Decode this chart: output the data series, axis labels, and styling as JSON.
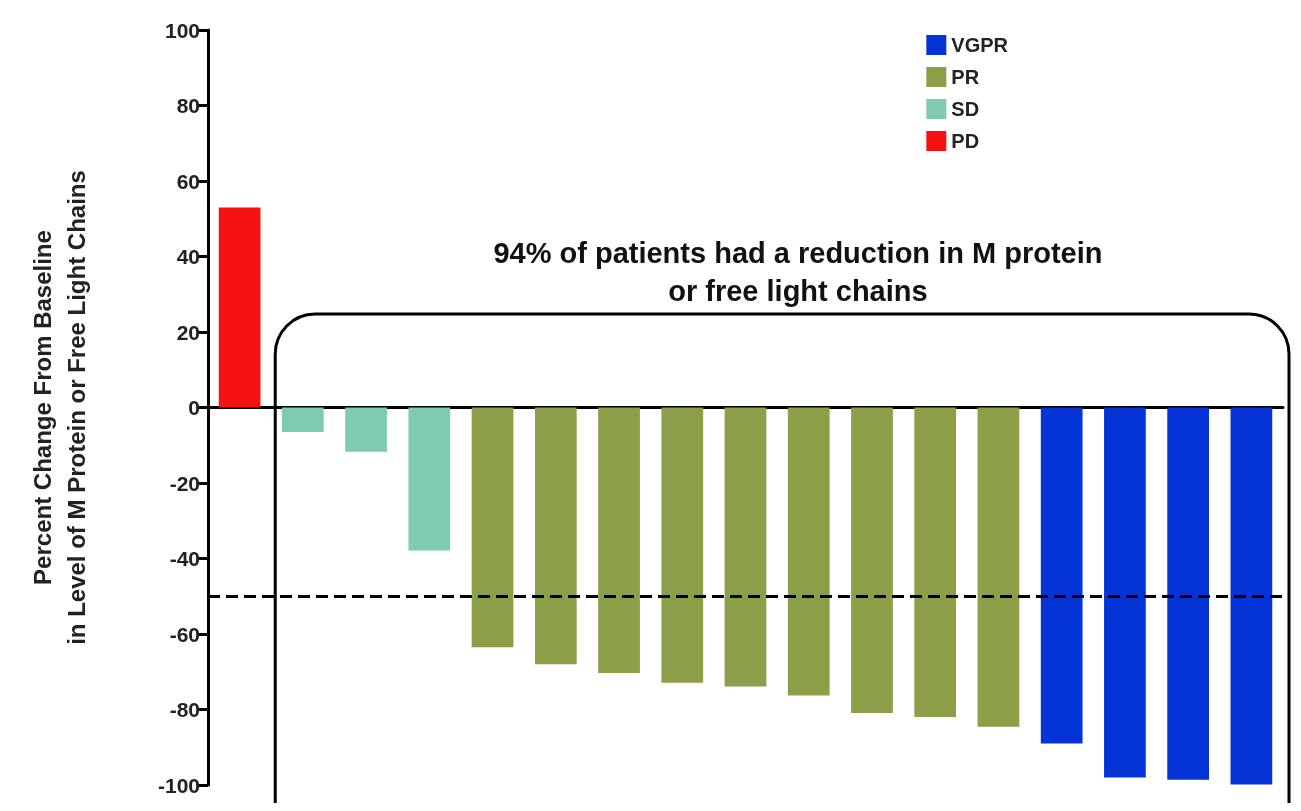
{
  "chart_data": {
    "type": "bar",
    "ylabel": "Percent Change From Baseline\nin Level of M Protein or Free Light Chains",
    "categories": [
      null,
      null,
      null,
      null,
      null,
      null,
      null,
      null,
      null,
      null,
      null,
      null,
      null,
      null,
      null,
      null,
      null
    ],
    "stacked": true,
    "series": [
      {
        "name": "VGPR",
        "color": "#0433d6",
        "values": [
          null,
          null,
          null,
          null,
          null,
          null,
          null,
          null,
          null,
          null,
          null,
          null,
          null,
          -89,
          -98,
          -98.6,
          -99.9
        ]
      },
      {
        "name": "PR",
        "color": "#8c9e48",
        "values": [
          null,
          null,
          null,
          null,
          -63.5,
          -68,
          -70.3,
          -72.9,
          -73.9,
          -76.3,
          -80.9,
          -82,
          -84.6,
          null,
          null,
          null,
          null
        ]
      },
      {
        "name": "SD",
        "color": "#7ecbb0",
        "values": [
          null,
          -6.5,
          -11.7,
          -37.9,
          null,
          null,
          null,
          null,
          null,
          null,
          null,
          null,
          null,
          null,
          null,
          null,
          null
        ]
      },
      {
        "name": "PD",
        "color": "#f31313",
        "values": [
          53,
          null,
          null,
          null,
          null,
          null,
          null,
          null,
          null,
          null,
          null,
          null,
          null,
          null,
          null,
          null,
          null
        ]
      }
    ],
    "ylim": [
      -100,
      100
    ],
    "yticks": [
      -100,
      -80,
      -60,
      -40,
      -20,
      0,
      20,
      40,
      60,
      80,
      100
    ],
    "ref_lines": [
      {
        "axis": "y",
        "value": -50,
        "color": "#000000",
        "line_style": "dashed"
      }
    ],
    "annotations": [
      "94% of patients had a reduction in M protein\nor free light chains"
    ],
    "legend": "top right"
  }
}
